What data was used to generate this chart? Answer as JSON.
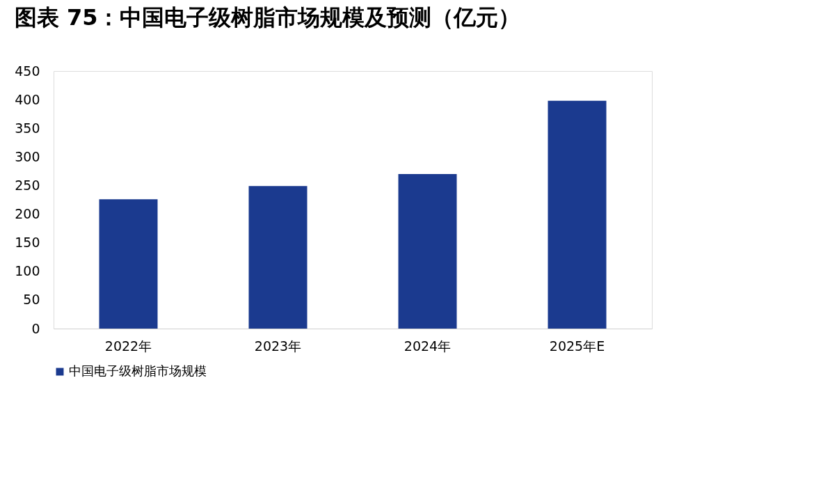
{
  "chart_data": {
    "type": "bar",
    "title": "图表 75：中国电子级树脂市场规模及预测（亿元）",
    "categories": [
      "2022年",
      "2023年",
      "2024年",
      "2025年E"
    ],
    "series": [
      {
        "name": "中国电子级树脂市场规模",
        "color": "#1b3a8f",
        "values": [
          226,
          249,
          270,
          398
        ]
      }
    ],
    "ylim": [
      0,
      450
    ],
    "yticks": [
      0,
      50,
      100,
      150,
      200,
      250,
      300,
      350,
      400,
      450
    ],
    "grid": false,
    "legend": "bottom"
  }
}
